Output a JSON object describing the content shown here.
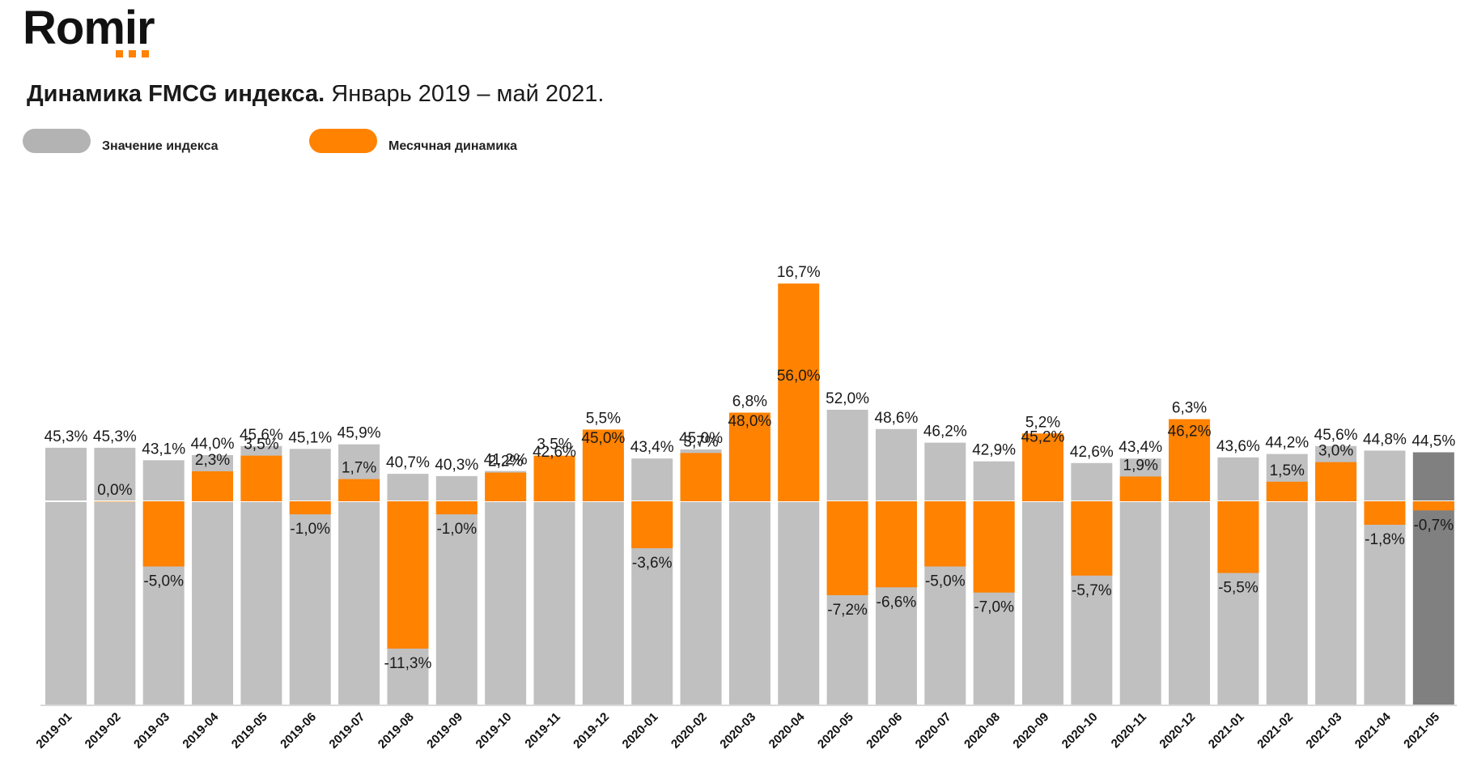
{
  "brand": {
    "name": "Romir",
    "accent": "#ff8200"
  },
  "title": {
    "bold": "Динамика FMCG индекса.",
    "rest": " Январь 2019 – май 2021."
  },
  "legend": [
    {
      "label": "Значение индекса",
      "color": "#b3b3b3"
    },
    {
      "label": "Месячная динамика",
      "color": "#ff8200"
    }
  ],
  "chart_data": {
    "type": "bar",
    "categories": [
      "2019-01",
      "2019-02",
      "2019-03",
      "2019-04",
      "2019-05",
      "2019-06",
      "2019-07",
      "2019-08",
      "2019-09",
      "2019-10",
      "2019-11",
      "2019-12",
      "2020-01",
      "2020-02",
      "2020-03",
      "2020-04",
      "2020-05",
      "2020-06",
      "2020-07",
      "2020-08",
      "2020-09",
      "2020-10",
      "2020-11",
      "2020-12",
      "2021-01",
      "2021-02",
      "2021-03",
      "2021-04",
      "2021-05"
    ],
    "series": [
      {
        "name": "Значение индекса",
        "color": "#c0c0c0",
        "highlight_last_color": "#808080",
        "values": [
          45.3,
          45.3,
          43.1,
          44.0,
          45.6,
          45.1,
          45.9,
          40.7,
          40.3,
          41.2,
          42.6,
          45.0,
          43.4,
          45.0,
          48.0,
          56.0,
          52.0,
          48.6,
          46.2,
          42.9,
          45.2,
          42.6,
          43.4,
          46.2,
          43.6,
          44.2,
          45.6,
          44.8,
          44.5
        ],
        "labels": [
          "45,3%",
          "45,3%",
          "43,1%",
          "44,0%",
          "45,6%",
          "45,1%",
          "45,9%",
          "40,7%",
          "40,3%",
          "41,2%",
          "42,6%",
          "45,0%",
          "43,4%",
          "45,0%",
          "48,0%",
          "56,0%",
          "52,0%",
          "48,6%",
          "46,2%",
          "42,9%",
          "45,2%",
          "42,6%",
          "43,4%",
          "46,2%",
          "43,6%",
          "44,2%",
          "45,6%",
          "44,8%",
          "44,5%"
        ]
      },
      {
        "name": "Месячная динамика",
        "color": "#ff8200",
        "values": [
          null,
          0.0,
          -5.0,
          2.3,
          3.5,
          -1.0,
          1.7,
          -11.3,
          -1.0,
          2.2,
          3.5,
          5.5,
          -3.6,
          3.7,
          6.8,
          16.7,
          -7.2,
          -6.6,
          -5.0,
          -7.0,
          5.2,
          -5.7,
          1.9,
          6.3,
          -5.5,
          1.5,
          3.0,
          -1.8,
          -0.7
        ],
        "labels": [
          null,
          "0,0%",
          "-5,0%",
          "2,3%",
          "3,5%",
          "-1,0%",
          "1,7%",
          "-11,3%",
          "-1,0%",
          "2,2%",
          "3,5%",
          "5,5%",
          "-3,6%",
          "3,7%",
          "6,8%",
          "16,7%",
          "-7,2%",
          "-6,6%",
          "-5,0%",
          "-7,0%",
          "5,2%",
          "-5,7%",
          "1,9%",
          "6,3%",
          "-5,5%",
          "1,5%",
          "3,0%",
          "-1,8%",
          "-0,7%"
        ]
      }
    ]
  }
}
